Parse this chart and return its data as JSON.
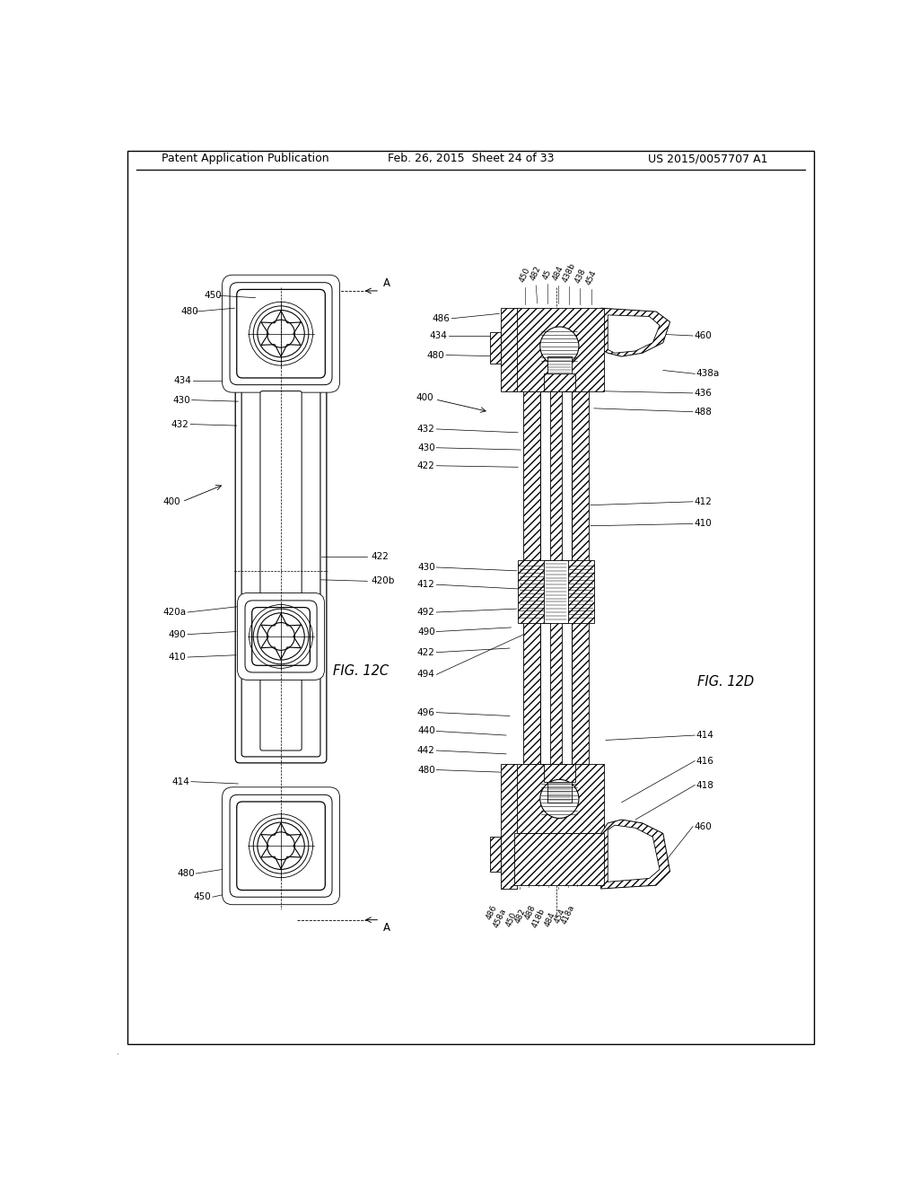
{
  "bg_color": "#ffffff",
  "header_left": "Patent Application Publication",
  "header_mid": "Feb. 26, 2015  Sheet 24 of 33",
  "header_right": "US 2015/0057707 A1",
  "fig_left_label": "FIG. 12C",
  "fig_right_label": "FIG. 12D",
  "line_color": "#000000",
  "label_fontsize": 7.5,
  "header_fontsize": 9.0,
  "fig_label_fontsize": 10.5,
  "lw_main": 1.0,
  "lw_thin": 0.5
}
